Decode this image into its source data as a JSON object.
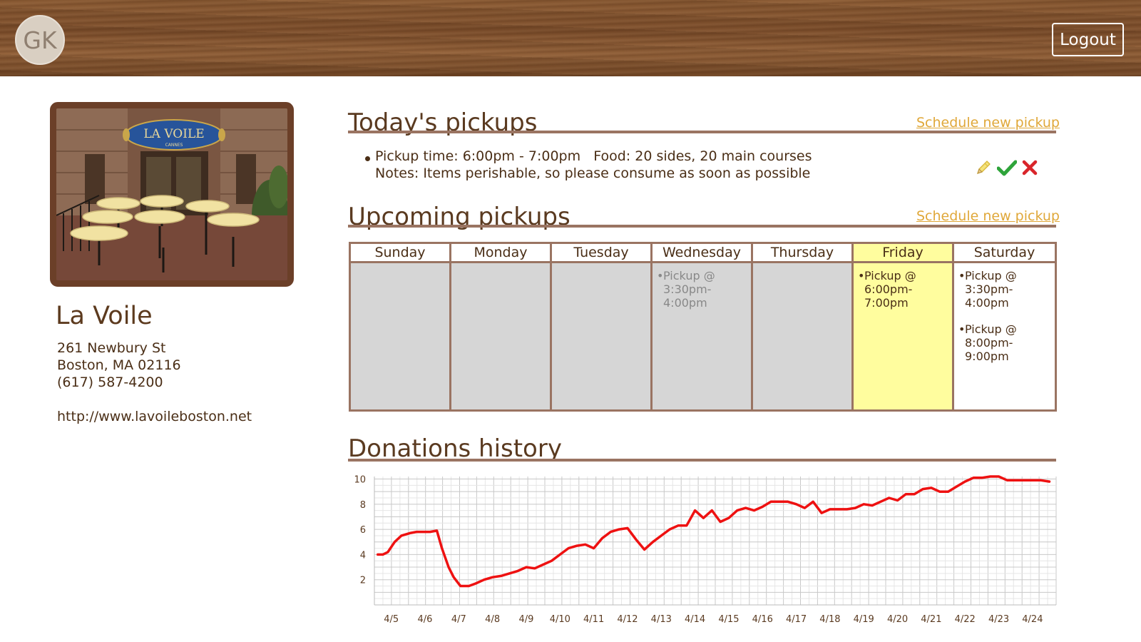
{
  "header": {
    "avatar_initials": "GK",
    "logout_label": "Logout"
  },
  "restaurant": {
    "name": "La Voile",
    "street": "261 Newbury St",
    "city": "Boston, MA 02116",
    "phone": "(617) 587-4200",
    "website": "http://www.lavoileboston.net",
    "sign_text": "LA VOILE",
    "sign_subtext": "CANNES"
  },
  "today": {
    "title": "Today's pickups",
    "schedule_link": "Schedule new pickup",
    "pickup": {
      "time_text": "Pickup time: 6:00pm - 7:00pm",
      "food_text": "Food: 20 sides, 20 main courses",
      "notes_text": "Notes: Items perishable, so please consume as soon as possible"
    },
    "icons": [
      "pencil-icon",
      "check-icon",
      "close-icon"
    ]
  },
  "upcoming": {
    "title": "Upcoming pickups",
    "schedule_link": "Schedule new pickup",
    "days": [
      {
        "label": "Sunday",
        "state": "past",
        "slots": []
      },
      {
        "label": "Monday",
        "state": "past",
        "slots": []
      },
      {
        "label": "Tuesday",
        "state": "past",
        "slots": []
      },
      {
        "label": "Wednesday",
        "state": "past",
        "slots": [
          {
            "line1": "Pickup @",
            "line2": "3:30pm-4:00pm"
          }
        ]
      },
      {
        "label": "Thursday",
        "state": "past",
        "slots": []
      },
      {
        "label": "Friday",
        "state": "today",
        "slots": [
          {
            "line1": "Pickup @",
            "line2": "6:00pm-7:00pm"
          }
        ]
      },
      {
        "label": "Saturday",
        "state": "future",
        "slots": [
          {
            "line1": "Pickup @",
            "line2": "3:30pm-4:00pm"
          },
          {
            "line1": "Pickup @",
            "line2": "8:00pm-9:00pm"
          }
        ]
      }
    ]
  },
  "history": {
    "title": "Donations history"
  },
  "colors": {
    "accent": "#e0a83a",
    "brown": "#5a3a20",
    "rule": "#9a7462",
    "today_highlight": "#fffd9e",
    "line": "#ee1111"
  },
  "chart_data": {
    "type": "line",
    "title": "",
    "xlabel": "",
    "ylabel": "",
    "x_ticks": [
      "4/5",
      "4/6",
      "4/7",
      "4/8",
      "4/9",
      "4/10",
      "4/11",
      "4/12",
      "4/13",
      "4/14",
      "4/15",
      "4/16",
      "4/17",
      "4/18",
      "4/19",
      "4/20",
      "4/21",
      "4/22",
      "4/23",
      "4/24"
    ],
    "y_ticks": [
      2,
      4,
      6,
      8,
      10
    ],
    "ylim": [
      0,
      10.2
    ],
    "xlim": [
      4.5,
      24.7
    ],
    "grid": true,
    "series": [
      {
        "x": [
          4.6,
          4.75,
          4.9,
          5.1,
          5.3,
          5.55,
          5.75,
          5.95,
          6.15,
          6.35,
          6.5,
          6.7,
          6.85,
          7.05,
          7.3,
          7.5,
          7.75,
          8.0,
          8.25,
          8.5,
          8.75,
          9.0,
          9.25,
          9.5,
          9.75,
          10.0,
          10.25,
          10.5,
          10.75,
          11.0,
          11.25,
          11.5,
          11.75,
          12.0,
          12.25,
          12.5,
          12.75,
          13.0,
          13.25,
          13.5,
          13.75,
          14.0,
          14.25,
          14.5,
          14.75,
          15.0,
          15.25,
          15.5,
          15.75,
          16.0,
          16.25,
          16.5,
          16.75,
          17.0,
          17.25,
          17.5,
          17.75,
          18.0,
          18.25,
          18.5,
          18.75,
          19.0,
          19.25,
          19.5,
          19.75,
          20.0,
          20.25,
          20.5,
          20.75,
          21.0,
          21.25,
          21.5,
          21.75,
          22.0,
          22.25,
          22.5,
          22.75,
          23.0,
          23.25,
          23.5,
          23.75,
          24.0,
          24.25,
          24.5
        ],
        "y": [
          4.0,
          4.0,
          4.2,
          5.0,
          5.5,
          5.7,
          5.8,
          5.8,
          5.8,
          5.9,
          4.5,
          3.0,
          2.2,
          1.5,
          1.5,
          1.7,
          2.0,
          2.2,
          2.3,
          2.5,
          2.7,
          3.0,
          2.9,
          3.2,
          3.5,
          4.0,
          4.5,
          4.7,
          4.8,
          4.5,
          5.3,
          5.8,
          6.0,
          6.1,
          5.2,
          4.4,
          5.0,
          5.5,
          6.0,
          6.3,
          6.3,
          7.5,
          6.9,
          7.5,
          6.6,
          6.9,
          7.5,
          7.7,
          7.5,
          7.8,
          8.2,
          8.2,
          8.2,
          8.0,
          7.7,
          8.2,
          7.3,
          7.6,
          7.6,
          7.6,
          7.7,
          8.0,
          7.9,
          8.2,
          8.5,
          8.3,
          8.8,
          8.8,
          9.2,
          9.3,
          9.0,
          9.0,
          9.4,
          9.8,
          10.1,
          10.1,
          10.2,
          10.2,
          9.9,
          9.9,
          9.9,
          9.9,
          9.9,
          9.8
        ]
      }
    ]
  }
}
